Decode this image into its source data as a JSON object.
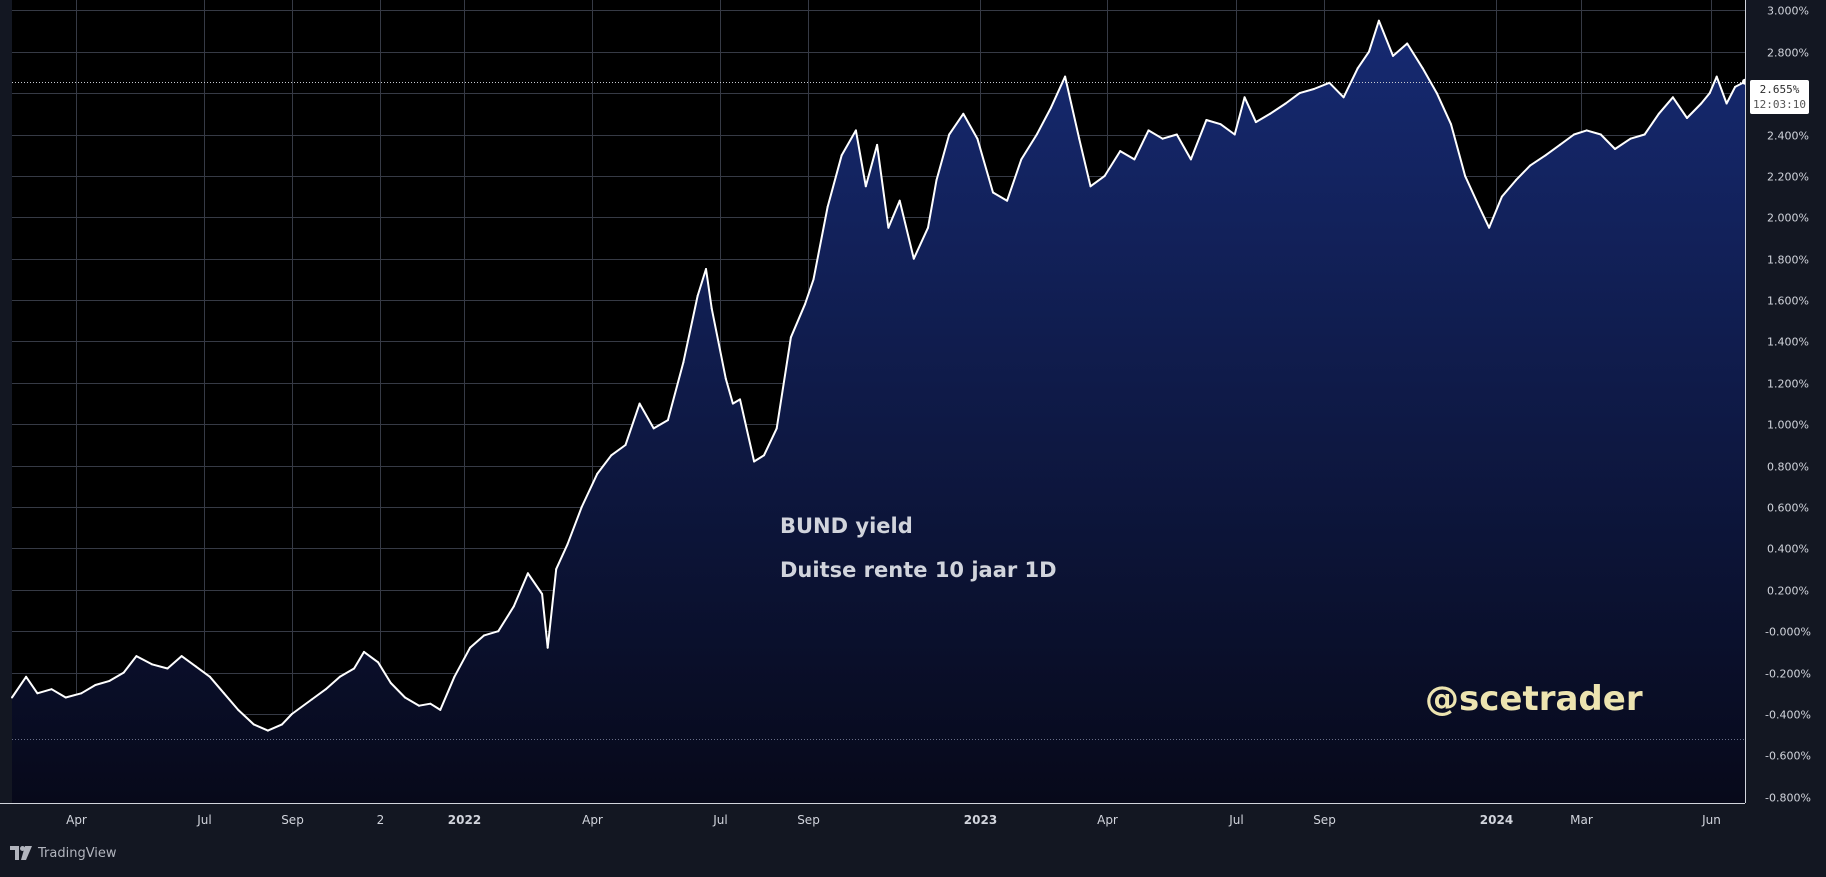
{
  "chart_data": {
    "type": "area",
    "title": "",
    "annotations": [
      "BUND yield",
      "Duitse rente 10 jaar 1D"
    ],
    "watermark": "@scetrader",
    "brand": "TradingView",
    "y_unit": "%",
    "ylim": [
      -0.83,
      3.05
    ],
    "y_ticks": [
      "3.000%",
      "2.800%",
      "2.600%",
      "2.400%",
      "2.200%",
      "2.000%",
      "1.800%",
      "1.600%",
      "1.400%",
      "1.200%",
      "1.000%",
      "0.800%",
      "0.600%",
      "0.400%",
      "0.200%",
      "-0.000%",
      "-0.200%",
      "-0.400%",
      "-0.600%",
      "-0.800%"
    ],
    "y_tick_values": [
      3.0,
      2.8,
      2.6,
      2.4,
      2.2,
      2.0,
      1.8,
      1.6,
      1.4,
      1.2,
      1.0,
      0.8,
      0.6,
      0.4,
      0.2,
      0.0,
      -0.2,
      -0.4,
      -0.6,
      -0.8
    ],
    "x_range": [
      "2021-02-15",
      "2024-06-25"
    ],
    "x_ticks": [
      {
        "label": "Apr",
        "date": "2021-04-01"
      },
      {
        "label": "Jul",
        "date": "2021-07-01"
      },
      {
        "label": "Sep",
        "date": "2021-09-01"
      },
      {
        "label": "2",
        "date": "2021-11-02"
      },
      {
        "label": "2022",
        "date": "2022-01-01"
      },
      {
        "label": "Apr",
        "date": "2022-04-01"
      },
      {
        "label": "Jul",
        "date": "2022-07-01"
      },
      {
        "label": "Sep",
        "date": "2022-09-01"
      },
      {
        "label": "2023",
        "date": "2023-01-01"
      },
      {
        "label": "Apr",
        "date": "2023-04-01"
      },
      {
        "label": "Jul",
        "date": "2023-07-01"
      },
      {
        "label": "Sep",
        "date": "2023-09-01"
      },
      {
        "label": "2024",
        "date": "2024-01-01"
      },
      {
        "label": "Mar",
        "date": "2024-03-01"
      },
      {
        "label": "Jun",
        "date": "2024-06-01"
      }
    ],
    "last_value": "2.655%",
    "last_value_num": 2.655,
    "countdown": "12:03:10",
    "reference_levels": [
      2.655,
      -0.52
    ],
    "series": [
      {
        "x": [
          "2021-02-15",
          "2021-02-25",
          "2021-03-05",
          "2021-03-15",
          "2021-03-25",
          "2021-04-05",
          "2021-04-15",
          "2021-04-25",
          "2021-05-05",
          "2021-05-14",
          "2021-05-25",
          "2021-06-05",
          "2021-06-15",
          "2021-06-25",
          "2021-07-05",
          "2021-07-15",
          "2021-07-25",
          "2021-08-05",
          "2021-08-15",
          "2021-08-25",
          "2021-09-01",
          "2021-09-15",
          "2021-09-25",
          "2021-10-05",
          "2021-10-15",
          "2021-10-22",
          "2021-11-01",
          "2021-11-10",
          "2021-11-20",
          "2021-11-30",
          "2021-12-08",
          "2021-12-15",
          "2021-12-25",
          "2022-01-05",
          "2022-01-15",
          "2022-01-25",
          "2022-02-05",
          "2022-02-15",
          "2022-02-25",
          "2022-03-01",
          "2022-03-07",
          "2022-03-15",
          "2022-03-25",
          "2022-04-05",
          "2022-04-15",
          "2022-04-25",
          "2022-05-05",
          "2022-05-15",
          "2022-05-25",
          "2022-06-05",
          "2022-06-15",
          "2022-06-21",
          "2022-06-25",
          "2022-07-05",
          "2022-07-10",
          "2022-07-15",
          "2022-07-25",
          "2022-08-01",
          "2022-08-10",
          "2022-08-20",
          "2022-08-30",
          "2022-09-05",
          "2022-09-15",
          "2022-09-25",
          "2022-10-05",
          "2022-10-12",
          "2022-10-20",
          "2022-10-28",
          "2022-11-05",
          "2022-11-15",
          "2022-11-25",
          "2022-12-01",
          "2022-12-10",
          "2022-12-20",
          "2022-12-30",
          "2023-01-10",
          "2023-01-20",
          "2023-01-30",
          "2023-02-10",
          "2023-02-20",
          "2023-03-02",
          "2023-03-12",
          "2023-03-20",
          "2023-03-30",
          "2023-04-10",
          "2023-04-20",
          "2023-04-30",
          "2023-05-10",
          "2023-05-20",
          "2023-05-30",
          "2023-06-10",
          "2023-06-20",
          "2023-06-30",
          "2023-07-07",
          "2023-07-15",
          "2023-07-25",
          "2023-08-05",
          "2023-08-15",
          "2023-08-25",
          "2023-09-05",
          "2023-09-15",
          "2023-09-25",
          "2023-10-03",
          "2023-10-10",
          "2023-10-20",
          "2023-10-30",
          "2023-11-10",
          "2023-11-20",
          "2023-11-30",
          "2023-12-10",
          "2023-12-20",
          "2023-12-27",
          "2024-01-05",
          "2024-01-15",
          "2024-01-25",
          "2024-02-05",
          "2024-02-15",
          "2024-02-25",
          "2024-03-05",
          "2024-03-15",
          "2024-03-25",
          "2024-04-05",
          "2024-04-15",
          "2024-04-25",
          "2024-05-05",
          "2024-05-15",
          "2024-05-25",
          "2024-05-31",
          "2024-06-05",
          "2024-06-12",
          "2024-06-18",
          "2024-06-25"
        ],
        "y": [
          -0.32,
          -0.22,
          -0.3,
          -0.28,
          -0.32,
          -0.3,
          -0.26,
          -0.24,
          -0.2,
          -0.12,
          -0.16,
          -0.18,
          -0.12,
          -0.17,
          -0.22,
          -0.3,
          -0.38,
          -0.45,
          -0.48,
          -0.45,
          -0.4,
          -0.33,
          -0.28,
          -0.22,
          -0.18,
          -0.1,
          -0.15,
          -0.25,
          -0.32,
          -0.36,
          -0.35,
          -0.38,
          -0.22,
          -0.08,
          -0.02,
          0.0,
          0.12,
          0.28,
          0.18,
          -0.08,
          0.3,
          0.42,
          0.6,
          0.76,
          0.85,
          0.9,
          1.1,
          0.98,
          1.02,
          1.3,
          1.62,
          1.75,
          1.56,
          1.22,
          1.1,
          1.12,
          0.82,
          0.85,
          0.98,
          1.42,
          1.58,
          1.7,
          2.05,
          2.3,
          2.42,
          2.15,
          2.35,
          1.95,
          2.08,
          1.8,
          1.95,
          2.18,
          2.4,
          2.5,
          2.38,
          2.12,
          2.08,
          2.28,
          2.4,
          2.53,
          2.68,
          2.38,
          2.15,
          2.2,
          2.32,
          2.28,
          2.42,
          2.38,
          2.4,
          2.28,
          2.47,
          2.45,
          2.4,
          2.58,
          2.46,
          2.5,
          2.55,
          2.6,
          2.62,
          2.65,
          2.58,
          2.72,
          2.8,
          2.95,
          2.78,
          2.84,
          2.72,
          2.6,
          2.45,
          2.2,
          2.05,
          1.95,
          2.1,
          2.18,
          2.25,
          2.3,
          2.35,
          2.4,
          2.42,
          2.4,
          2.33,
          2.38,
          2.4,
          2.5,
          2.58,
          2.48,
          2.55,
          2.6,
          2.68,
          2.55,
          2.63,
          2.655
        ]
      }
    ]
  }
}
